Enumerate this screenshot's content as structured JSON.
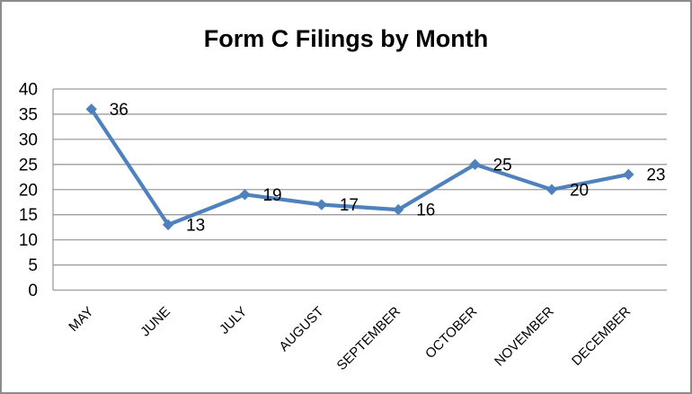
{
  "chart_data": {
    "type": "line",
    "title": "Form C Filings by Month",
    "categories": [
      "MAY",
      "JUNE",
      "JULY",
      "AUGUST",
      "SEPTEMBER",
      "OCTOBER",
      "NOVEMBER",
      "DECEMBER"
    ],
    "values": [
      36,
      13,
      19,
      17,
      16,
      25,
      20,
      23
    ],
    "xlabel": "",
    "ylabel": "",
    "ylim": [
      0,
      40
    ],
    "yticks": [
      0,
      5,
      10,
      15,
      20,
      25,
      30,
      35,
      40
    ],
    "grid": "horizontal",
    "legend": "none",
    "data_labels": true,
    "marker": "diamond",
    "x_label_rotation_deg": -45,
    "colors": {
      "series": "#4F81BD",
      "gridline": "#9D9D9D",
      "axis": "#9D9D9D",
      "text": "#000000",
      "background": "#FFFFFF",
      "border": "#8C8C8C"
    }
  }
}
